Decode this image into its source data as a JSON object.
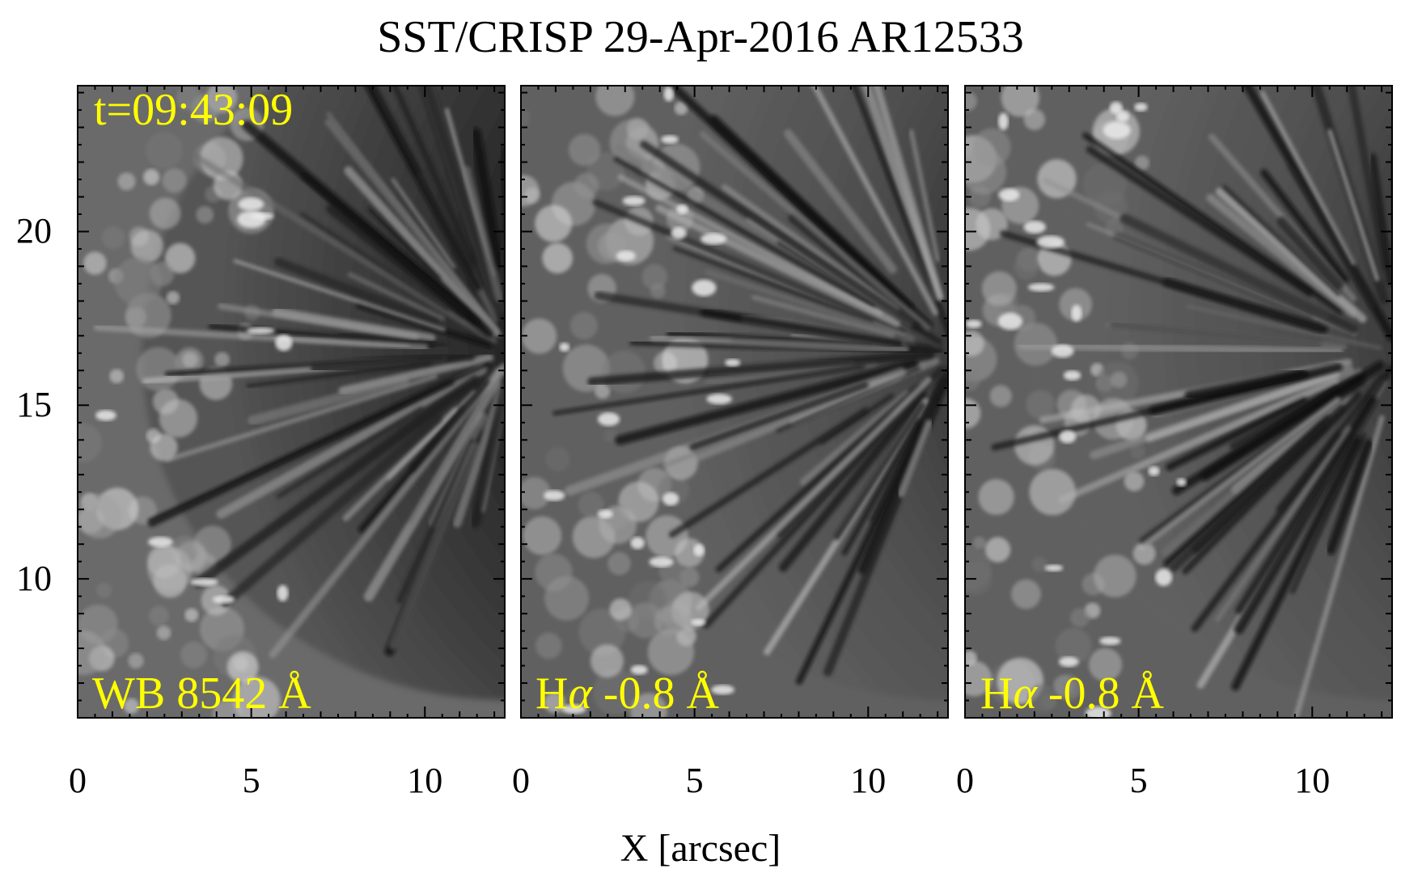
{
  "title": "SST/CRISP 29-Apr-2016 AR12533",
  "time_label": "t=09:43:09",
  "panels": [
    {
      "label": "WB 8542 Å"
    },
    {
      "label_prefix": "H",
      "label_symbol": "α",
      "label_suffix": " -0.8 Å"
    },
    {
      "label_prefix": "H",
      "label_symbol": "α",
      "label_suffix": " -0.8 Å"
    }
  ],
  "x_axis": {
    "title": "X [arcsec]",
    "ticks": [
      "0",
      "5",
      "10"
    ],
    "range": [
      0,
      12.3
    ]
  },
  "y_axis": {
    "ticks": [
      "10",
      "15",
      "20"
    ],
    "range": [
      6.0,
      24.2
    ]
  },
  "colors": {
    "label": "#ffff00",
    "axes": "#000000",
    "background": "#ffffff"
  }
}
